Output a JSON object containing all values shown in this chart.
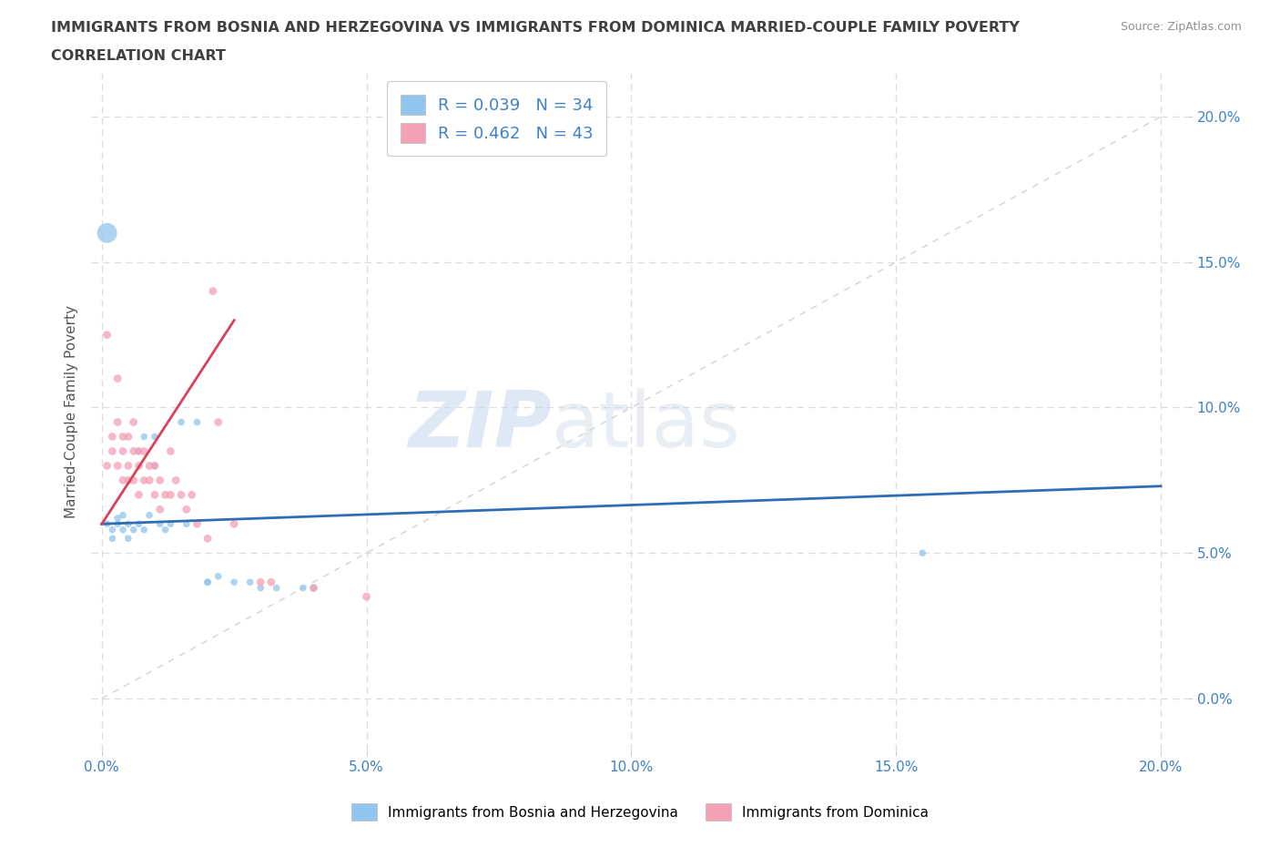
{
  "title_line1": "IMMIGRANTS FROM BOSNIA AND HERZEGOVINA VS IMMIGRANTS FROM DOMINICA MARRIED-COUPLE FAMILY POVERTY",
  "title_line2": "CORRELATION CHART",
  "source": "Source: ZipAtlas.com",
  "ylabel": "Married-Couple Family Poverty",
  "xlim": [
    -0.002,
    0.205
  ],
  "ylim": [
    -0.018,
    0.215
  ],
  "yticks": [
    0.0,
    0.05,
    0.1,
    0.15,
    0.2
  ],
  "xticks": [
    0.0,
    0.05,
    0.1,
    0.15,
    0.2
  ],
  "blue_color": "#92C5ED",
  "pink_color": "#F4A0B5",
  "blue_line_color": "#2E6DB4",
  "pink_line_color": "#D9405A",
  "R_blue": 0.039,
  "N_blue": 34,
  "R_pink": 0.462,
  "N_pink": 43,
  "legend_label_blue": "Immigrants from Bosnia and Herzegovina",
  "legend_label_pink": "Immigrants from Dominica",
  "watermark_zip": "ZIP",
  "watermark_atlas": "atlas",
  "blue_scatter": [
    [
      0.001,
      0.06
    ],
    [
      0.002,
      0.058
    ],
    [
      0.002,
      0.055
    ],
    [
      0.003,
      0.062
    ],
    [
      0.003,
      0.06
    ],
    [
      0.004,
      0.063
    ],
    [
      0.004,
      0.058
    ],
    [
      0.005,
      0.06
    ],
    [
      0.005,
      0.055
    ],
    [
      0.006,
      0.058
    ],
    [
      0.007,
      0.085
    ],
    [
      0.007,
      0.06
    ],
    [
      0.008,
      0.09
    ],
    [
      0.008,
      0.058
    ],
    [
      0.009,
      0.063
    ],
    [
      0.01,
      0.08
    ],
    [
      0.01,
      0.09
    ],
    [
      0.011,
      0.06
    ],
    [
      0.012,
      0.058
    ],
    [
      0.013,
      0.06
    ],
    [
      0.015,
      0.095
    ],
    [
      0.016,
      0.06
    ],
    [
      0.018,
      0.095
    ],
    [
      0.02,
      0.04
    ],
    [
      0.02,
      0.04
    ],
    [
      0.022,
      0.042
    ],
    [
      0.025,
      0.04
    ],
    [
      0.028,
      0.04
    ],
    [
      0.03,
      0.038
    ],
    [
      0.033,
      0.038
    ],
    [
      0.038,
      0.038
    ],
    [
      0.04,
      0.038
    ],
    [
      0.155,
      0.05
    ],
    [
      0.001,
      0.16
    ]
  ],
  "blue_sizes": [
    30,
    30,
    30,
    30,
    30,
    30,
    30,
    30,
    30,
    30,
    30,
    30,
    30,
    30,
    30,
    30,
    30,
    30,
    30,
    30,
    30,
    30,
    30,
    30,
    30,
    30,
    30,
    30,
    30,
    30,
    30,
    30,
    30,
    250
  ],
  "pink_scatter": [
    [
      0.001,
      0.125
    ],
    [
      0.001,
      0.08
    ],
    [
      0.002,
      0.09
    ],
    [
      0.002,
      0.085
    ],
    [
      0.003,
      0.11
    ],
    [
      0.003,
      0.095
    ],
    [
      0.003,
      0.08
    ],
    [
      0.004,
      0.09
    ],
    [
      0.004,
      0.085
    ],
    [
      0.004,
      0.075
    ],
    [
      0.005,
      0.09
    ],
    [
      0.005,
      0.08
    ],
    [
      0.005,
      0.075
    ],
    [
      0.006,
      0.095
    ],
    [
      0.006,
      0.085
    ],
    [
      0.006,
      0.075
    ],
    [
      0.007,
      0.085
    ],
    [
      0.007,
      0.08
    ],
    [
      0.007,
      0.07
    ],
    [
      0.008,
      0.085
    ],
    [
      0.008,
      0.075
    ],
    [
      0.009,
      0.08
    ],
    [
      0.009,
      0.075
    ],
    [
      0.01,
      0.08
    ],
    [
      0.01,
      0.07
    ],
    [
      0.011,
      0.075
    ],
    [
      0.011,
      0.065
    ],
    [
      0.012,
      0.07
    ],
    [
      0.013,
      0.085
    ],
    [
      0.013,
      0.07
    ],
    [
      0.014,
      0.075
    ],
    [
      0.015,
      0.07
    ],
    [
      0.016,
      0.065
    ],
    [
      0.017,
      0.07
    ],
    [
      0.018,
      0.06
    ],
    [
      0.02,
      0.055
    ],
    [
      0.021,
      0.14
    ],
    [
      0.022,
      0.095
    ],
    [
      0.025,
      0.06
    ],
    [
      0.03,
      0.04
    ],
    [
      0.032,
      0.04
    ],
    [
      0.04,
      0.038
    ],
    [
      0.05,
      0.035
    ]
  ],
  "pink_sizes": [
    40,
    40,
    40,
    40,
    40,
    40,
    40,
    40,
    40,
    40,
    40,
    40,
    40,
    40,
    40,
    40,
    40,
    40,
    40,
    40,
    40,
    40,
    40,
    40,
    40,
    40,
    40,
    40,
    40,
    40,
    40,
    40,
    40,
    40,
    40,
    40,
    40,
    40,
    40,
    40,
    40,
    40,
    40
  ],
  "blue_trend": [
    0.0,
    0.2,
    0.06,
    0.073
  ],
  "pink_trend": [
    0.0,
    0.025,
    0.06,
    0.13
  ],
  "diag_trend": [
    0.0,
    0.2,
    0.0,
    0.2
  ],
  "background_color": "#FFFFFF",
  "grid_color": "#DDDDDD",
  "title_color": "#404040",
  "axis_label_color": "#555555",
  "tick_label_color": "#4080C8",
  "source_color": "#909090"
}
